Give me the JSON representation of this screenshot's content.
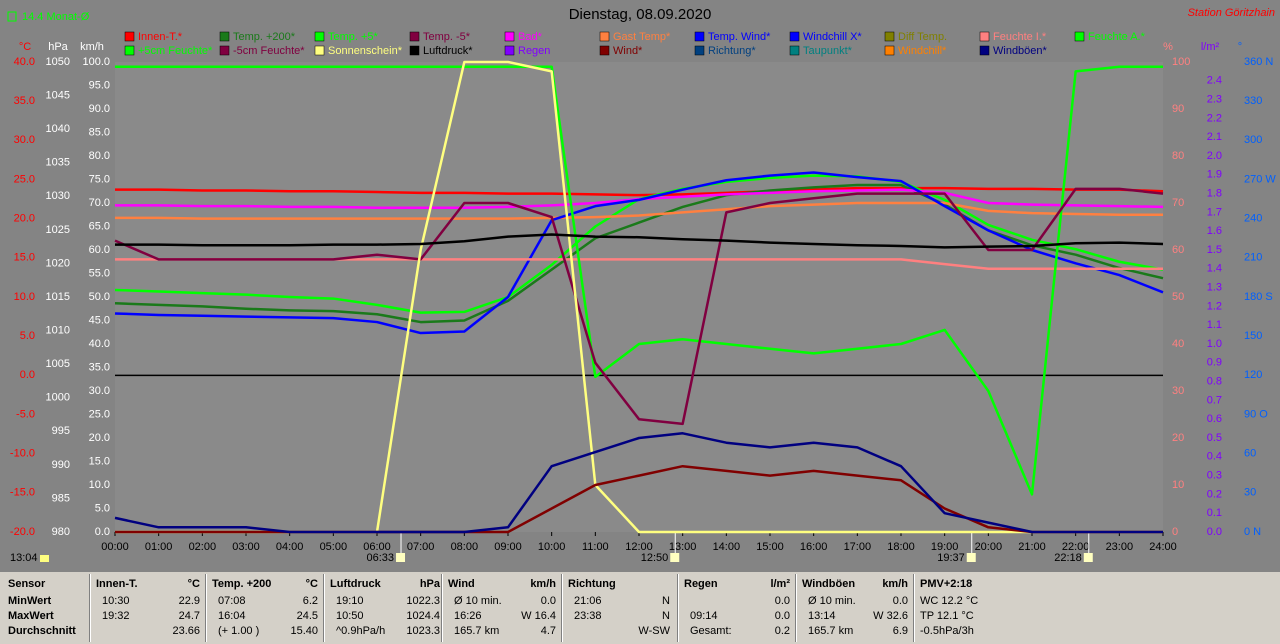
{
  "chart_data": {
    "type": "line",
    "title": "Dienstag, 08.09.2020",
    "station": "Station Göritzhain",
    "month_avg": "14.4 Monat-Ø",
    "clock": "13:04",
    "annotations": [
      {
        "label": "06:33",
        "x": 6.55
      },
      {
        "label": "12:50",
        "x": 12.83
      },
      {
        "label": "19:37",
        "x": 19.62
      },
      {
        "label": "22:18",
        "x": 22.3
      }
    ],
    "xlim": [
      0,
      24
    ],
    "x": [
      0,
      1,
      2,
      3,
      4,
      5,
      6,
      7,
      8,
      9,
      10,
      11,
      12,
      13,
      14,
      15,
      16,
      17,
      18,
      19,
      20,
      21,
      22,
      23,
      24
    ],
    "xticks": [
      {
        "value": 0,
        "label": "00:00"
      },
      {
        "value": 1,
        "label": "01:00"
      },
      {
        "value": 2,
        "label": "02:00"
      },
      {
        "value": 3,
        "label": "03:00"
      },
      {
        "value": 4,
        "label": "04:00"
      },
      {
        "value": 5,
        "label": "05:00"
      },
      {
        "value": 6,
        "label": "06:00"
      },
      {
        "value": 7,
        "label": "07:00"
      },
      {
        "value": 8,
        "label": "08:00"
      },
      {
        "value": 9,
        "label": "09:00"
      },
      {
        "value": 10,
        "label": "10:00"
      },
      {
        "value": 11,
        "label": "11:00"
      },
      {
        "value": 12,
        "label": "12:00"
      },
      {
        "value": 13,
        "label": "13:00"
      },
      {
        "value": 14,
        "label": "14:00"
      },
      {
        "value": 15,
        "label": "15:00"
      },
      {
        "value": 16,
        "label": "16:00"
      },
      {
        "value": 17,
        "label": "17:00"
      },
      {
        "value": 18,
        "label": "18:00"
      },
      {
        "value": 19,
        "label": "19:00"
      },
      {
        "value": 20,
        "label": "20:00"
      },
      {
        "value": 21,
        "label": "21:00"
      },
      {
        "value": 22,
        "label": "22:00"
      },
      {
        "value": 23,
        "label": "23:00"
      },
      {
        "value": 24,
        "label": "24:00"
      }
    ],
    "axes": {
      "temp": {
        "label": "°C",
        "color": "#ff0000",
        "side": "left",
        "lim": [
          -20,
          40
        ],
        "ticks": [
          {
            "value": 40,
            "label": "40.0"
          },
          {
            "value": 35,
            "label": "35.0"
          },
          {
            "value": 30,
            "label": "30.0"
          },
          {
            "value": 25,
            "label": "25.0"
          },
          {
            "value": 20,
            "label": "20.0"
          },
          {
            "value": 15,
            "label": "15.0"
          },
          {
            "value": 10,
            "label": "10.0"
          },
          {
            "value": 5,
            "label": "5.0"
          },
          {
            "value": 0,
            "label": "0.0"
          },
          {
            "value": -5,
            "label": "-5.0"
          },
          {
            "value": -10,
            "label": "-10.0"
          },
          {
            "value": -15,
            "label": "-15.0"
          },
          {
            "value": -20,
            "label": "-20.0"
          }
        ]
      },
      "pressure": {
        "label": "hPa",
        "color": "#ffffff",
        "side": "left",
        "lim": [
          980,
          1050
        ],
        "ticks": [
          1050,
          1045,
          1040,
          1035,
          1030,
          1025,
          1020,
          1015,
          1010,
          1005,
          1000,
          995,
          990,
          985,
          980
        ]
      },
      "wind": {
        "label": "km/h",
        "color": "#ffffff",
        "side": "left",
        "lim": [
          0,
          100
        ],
        "ticks": [
          {
            "value": 100,
            "label": "100.0"
          },
          {
            "value": 95,
            "label": "95.0"
          },
          {
            "value": 90,
            "label": "90.0"
          },
          {
            "value": 85,
            "label": "85.0"
          },
          {
            "value": 80,
            "label": "80.0"
          },
          {
            "value": 75,
            "label": "75.0"
          },
          {
            "value": 70,
            "label": "70.0"
          },
          {
            "value": 65,
            "label": "65.0"
          },
          {
            "value": 60,
            "label": "60.0"
          },
          {
            "value": 55,
            "label": "55.0"
          },
          {
            "value": 50,
            "label": "50.0"
          },
          {
            "value": 45,
            "label": "45.0"
          },
          {
            "value": 40,
            "label": "40.0"
          },
          {
            "value": 35,
            "label": "35.0"
          },
          {
            "value": 30,
            "label": "30.0"
          },
          {
            "value": 25,
            "label": "25.0"
          },
          {
            "value": 20,
            "label": "20.0"
          },
          {
            "value": 15,
            "label": "15.0"
          },
          {
            "value": 10,
            "label": "10.0"
          },
          {
            "value": 5,
            "label": "5.0"
          },
          {
            "value": 0,
            "label": "0.0"
          }
        ]
      },
      "humidity": {
        "label": "%",
        "color": "#ff8080",
        "side": "right",
        "lim": [
          0,
          100
        ],
        "ticks": [
          100,
          90,
          80,
          70,
          60,
          50,
          40,
          30,
          20,
          10,
          0
        ]
      },
      "rain": {
        "label": "l/m²",
        "color": "#8000ff",
        "side": "right",
        "lim": [
          0,
          2.5
        ],
        "ticks": [
          {
            "value": 2.4,
            "label": "2.4"
          },
          {
            "value": 2.3,
            "label": "2.3"
          },
          {
            "value": 2.2,
            "label": "2.2"
          },
          {
            "value": 2.1,
            "label": "2.1"
          },
          {
            "value": 2,
            "label": "2.0"
          },
          {
            "value": 1.9,
            "label": "1.9"
          },
          {
            "value": 1.8,
            "label": "1.8"
          },
          {
            "value": 1.7,
            "label": "1.7"
          },
          {
            "value": 1.6,
            "label": "1.6"
          },
          {
            "value": 1.5,
            "label": "1.5"
          },
          {
            "value": 1.4,
            "label": "1.4"
          },
          {
            "value": 1.3,
            "label": "1.3"
          },
          {
            "value": 1.2,
            "label": "1.2"
          },
          {
            "value": 1.1,
            "label": "1.1"
          },
          {
            "value": 1,
            "label": "1.0"
          },
          {
            "value": 0.9,
            "label": "0.9"
          },
          {
            "value": 0.8,
            "label": "0.8"
          },
          {
            "value": 0.7,
            "label": "0.7"
          },
          {
            "value": 0.6,
            "label": "0.6"
          },
          {
            "value": 0.5,
            "label": "0.5"
          },
          {
            "value": 0.4,
            "label": "0.4"
          },
          {
            "value": 0.3,
            "label": "0.3"
          },
          {
            "value": 0.2,
            "label": "0.2"
          },
          {
            "value": 0.1,
            "label": "0.1"
          },
          {
            "value": 0,
            "label": "0.0"
          }
        ]
      },
      "direction": {
        "label": "°",
        "color": "#0060ff",
        "side": "right",
        "lim": [
          0,
          360
        ],
        "ticks": [
          {
            "value": 360,
            "label": "360 N"
          },
          330,
          300,
          {
            "value": 270,
            "label": "270 W"
          },
          240,
          210,
          {
            "value": 180,
            "label": "180 S"
          },
          150,
          120,
          {
            "value": 90,
            "label": "90 O"
          },
          60,
          30,
          {
            "value": 0,
            "label": "0 N"
          }
        ]
      }
    },
    "series": [
      {
        "name": "Innen-T.*",
        "color": "#ff0000",
        "axis": "temp",
        "values": [
          23.7,
          23.7,
          23.6,
          23.6,
          23.5,
          23.5,
          23.4,
          23.3,
          23.3,
          23.2,
          23.2,
          23.1,
          23.0,
          23.1,
          23.3,
          23.5,
          23.7,
          23.9,
          23.9,
          23.9,
          23.8,
          23.8,
          23.7,
          23.7,
          23.5
        ]
      },
      {
        "name": "Temp. +200*",
        "color": "#1a7a1a",
        "axis": "temp",
        "values": [
          9.2,
          9.0,
          8.8,
          8.5,
          8.3,
          8.2,
          7.8,
          6.8,
          7.0,
          9.5,
          13.5,
          17.5,
          19.5,
          21.5,
          23.0,
          23.6,
          24.0,
          24.3,
          24.3,
          21.8,
          18.5,
          16.6,
          15.4,
          13.7,
          12.4
        ]
      },
      {
        "name": "Temp. +5*",
        "color": "#00ff00",
        "axis": "temp",
        "values": [
          10.9,
          10.7,
          10.5,
          10.3,
          10.0,
          9.8,
          9.0,
          8.0,
          8.1,
          10.0,
          14.1,
          19.0,
          22.5,
          23.8,
          24.7,
          25.2,
          25.5,
          25.4,
          24.7,
          22.4,
          19.2,
          17.3,
          16.1,
          14.5,
          13.5
        ]
      },
      {
        "name": "Temp. -5*",
        "color": "#800040",
        "axis": "temp"
      },
      {
        "name": "Bad*",
        "color": "#ff00ff",
        "axis": "temp",
        "values": [
          21.7,
          21.7,
          21.6,
          21.6,
          21.5,
          21.5,
          21.4,
          21.4,
          21.4,
          21.5,
          21.7,
          22.0,
          22.5,
          22.8,
          23.1,
          23.3,
          23.5,
          23.6,
          23.7,
          23.3,
          22.0,
          21.8,
          21.7,
          21.6,
          21.5
        ]
      },
      {
        "name": "Gast Temp*",
        "color": "#ff8040",
        "axis": "temp",
        "values": [
          20.1,
          20.1,
          20.0,
          20.0,
          20.0,
          20.0,
          20.0,
          20.0,
          20.0,
          20.0,
          20.1,
          20.2,
          20.4,
          20.8,
          21.2,
          21.6,
          21.8,
          22.0,
          22.0,
          22.0,
          21.0,
          20.7,
          20.6,
          20.5,
          20.5
        ]
      },
      {
        "name": "Temp. Wind*",
        "color": "#0000ff",
        "axis": "temp"
      },
      {
        "name": "Windchill X*",
        "color": "#0000ff",
        "axis": "temp",
        "values": [
          7.9,
          7.7,
          7.6,
          7.5,
          7.4,
          7.3,
          6.8,
          5.4,
          5.6,
          10.0,
          19.8,
          21.6,
          22.4,
          23.7,
          24.9,
          25.5,
          25.9,
          25.3,
          24.8,
          21.6,
          18.5,
          16.0,
          14.3,
          12.8,
          10.6
        ]
      },
      {
        "name": "Diff Temp.",
        "color": "#808000",
        "axis": "temp"
      },
      {
        "name": "Feuchte I.*",
        "color": "#ff8080",
        "axis": "humidity",
        "values": [
          58,
          58,
          58,
          58,
          58,
          58,
          58,
          58,
          58,
          58,
          58,
          58,
          58,
          58,
          58,
          58,
          58,
          58,
          58,
          57,
          56,
          56,
          56,
          56,
          56
        ]
      },
      {
        "name": "Feuchte A.*",
        "color": "#00ff00",
        "axis": "humidity",
        "values": [
          99,
          99,
          99,
          99,
          99,
          99,
          99,
          99,
          99,
          99,
          99,
          33,
          40,
          41,
          40,
          39,
          38,
          39,
          40,
          43,
          30,
          8,
          98,
          99,
          99
        ]
      },
      {
        "name": "+5cm Feuchte*",
        "color": "#00ff00",
        "axis": "humidity"
      },
      {
        "name": "-5cm Feuchte*",
        "color": "#800040",
        "axis": "humidity",
        "values": [
          62,
          58,
          58,
          58,
          58,
          58,
          59,
          58,
          70,
          70,
          67,
          36,
          24,
          23,
          68,
          70,
          71,
          72,
          72,
          72,
          60,
          60,
          73,
          73,
          72
        ]
      },
      {
        "name": "Sonnenschein*",
        "color": "#ffff80",
        "axis": "humidity",
        "values": [
          0,
          0,
          0,
          0,
          0,
          0,
          0,
          60,
          100,
          100,
          98,
          10,
          0,
          0,
          0,
          0,
          0,
          0,
          0,
          0,
          0,
          0,
          0,
          0,
          0
        ]
      },
      {
        "name": "Luftdruck*",
        "color": "#000000",
        "axis": "pressure",
        "values": [
          1022.8,
          1022.8,
          1022.7,
          1022.7,
          1022.7,
          1022.8,
          1022.8,
          1022.9,
          1023.3,
          1024.0,
          1024.3,
          1024.0,
          1023.9,
          1023.6,
          1023.4,
          1023.1,
          1022.9,
          1022.7,
          1022.6,
          1022.4,
          1022.5,
          1022.6,
          1023.0,
          1023.1,
          1022.9
        ]
      },
      {
        "name": "Regen",
        "color": "#8000ff",
        "axis": "rain"
      },
      {
        "name": "Wind*",
        "color": "#800000",
        "axis": "wind",
        "values": [
          0,
          0,
          0,
          0,
          0,
          0,
          0,
          0,
          0,
          0,
          5,
          10,
          12,
          14,
          13,
          12,
          13,
          12,
          11,
          5,
          1,
          0,
          0,
          0,
          0
        ]
      },
      {
        "name": "Richtung*",
        "color": "#004080",
        "axis": "direction"
      },
      {
        "name": "Taupunkt*",
        "color": "#008080",
        "axis": "temp"
      },
      {
        "name": "Windchill*",
        "color": "#ff8000",
        "axis": "temp"
      },
      {
        "name": "Windböen*",
        "color": "#000080",
        "axis": "wind",
        "values": [
          3,
          1,
          1,
          1,
          0,
          0,
          0,
          0,
          0,
          1,
          14,
          17,
          20,
          21,
          19,
          18,
          19,
          18,
          14,
          4,
          2,
          0,
          0,
          0,
          0
        ]
      }
    ]
  },
  "table": {
    "columns": [
      {
        "header": [
          "Sensor"
        ],
        "rows": [
          [
            "MinWert"
          ],
          [
            "MaxWert"
          ],
          [
            "Durchschnitt"
          ]
        ]
      },
      {
        "header": [
          "Innen-T.",
          "°C"
        ],
        "rows": [
          [
            "10:30",
            "22.9"
          ],
          [
            "19:32",
            "24.7"
          ],
          [
            "23.66"
          ]
        ]
      },
      {
        "header": [
          "Temp. +200",
          "°C"
        ],
        "rows": [
          [
            "07:08",
            "6.2"
          ],
          [
            "16:04",
            "24.5"
          ],
          [
            "(+ 1.00 )",
            "15.40"
          ]
        ]
      },
      {
        "header": [
          "Luftdruck",
          "hPa"
        ],
        "rows": [
          [
            "19:10",
            "1022.3"
          ],
          [
            "10:50",
            "1024.4"
          ],
          [
            "^0.9hPa/h",
            "1023.3"
          ]
        ]
      },
      {
        "header": [
          "Wind",
          "km/h"
        ],
        "rows": [
          [
            "Ø 10 min.",
            "0.0"
          ],
          [
            "16:26",
            "W 16.4"
          ],
          [
            "165.7 km",
            "4.7"
          ]
        ]
      },
      {
        "header": [
          "Richtung"
        ],
        "rows": [
          [
            "21:06",
            "N"
          ],
          [
            "23:38",
            "N"
          ],
          [
            "W-SW"
          ]
        ]
      },
      {
        "header": [
          "Regen",
          "l/m²"
        ],
        "rows": [
          [
            "0.0"
          ],
          [
            "09:14",
            "0.0"
          ],
          [
            "Gesamt:",
            "0.2"
          ]
        ]
      },
      {
        "header": [
          "Windböen",
          "km/h"
        ],
        "rows": [
          [
            "Ø 10 min.",
            "0.0"
          ],
          [
            "13:14",
            "W 32.6"
          ],
          [
            "165.7 km",
            "6.9"
          ]
        ]
      },
      {
        "header": [
          "PMV+2:18"
        ],
        "rows": [
          [
            "WC 12.2 °C"
          ],
          [
            "TP 12.1 °C"
          ],
          [
            "-0.5hPa/3h"
          ]
        ]
      }
    ]
  }
}
